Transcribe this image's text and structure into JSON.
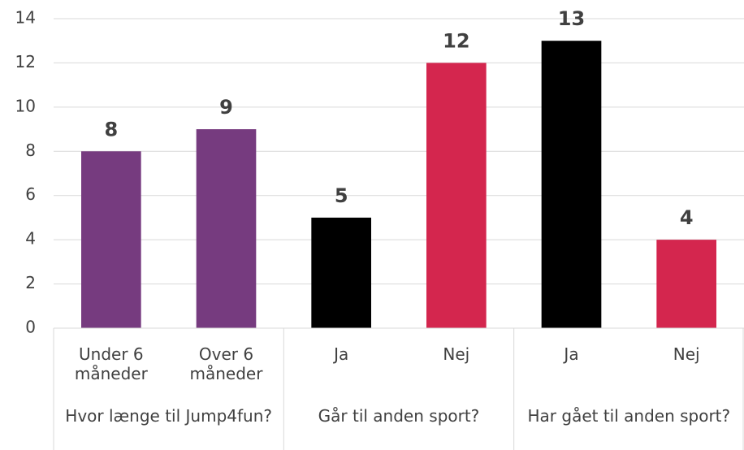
{
  "chart_data": {
    "type": "bar",
    "groups": [
      {
        "name": "Hvor længe til Jump4fun?",
        "categories": [
          "Under 6 måneder",
          "Over 6 måneder"
        ]
      },
      {
        "name": "Går til anden sport?",
        "categories": [
          "Ja",
          "Nej"
        ]
      },
      {
        "name": "Har gået til anden sport?",
        "categories": [
          "Ja",
          "Nej"
        ]
      }
    ],
    "values": [
      8,
      9,
      5,
      12,
      13,
      4
    ],
    "colors": [
      "#763b7f",
      "#763b7f",
      "#000000",
      "#d4264e",
      "#000000",
      "#d4264e"
    ],
    "ylim": [
      0,
      14
    ],
    "yticks": [
      0,
      2,
      4,
      6,
      8,
      10,
      12,
      14
    ],
    "grid": true
  }
}
